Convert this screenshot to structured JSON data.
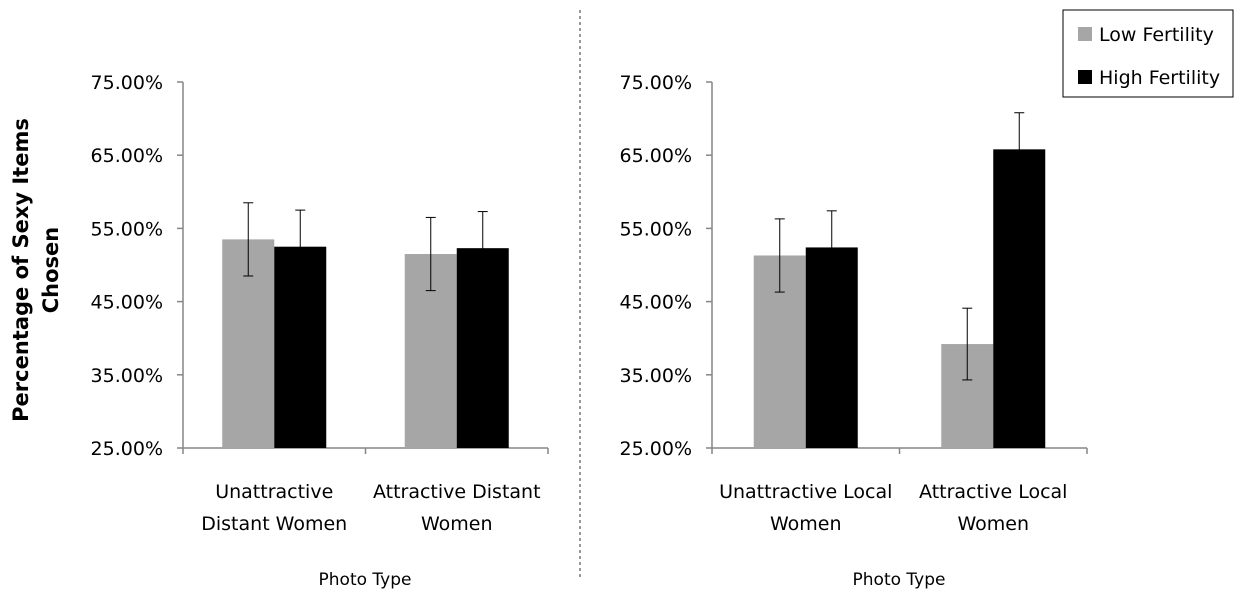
{
  "ylabel": "Percentage of Sexy Items Chosen",
  "colors": {
    "low": "#a6a6a6",
    "high": "#000000",
    "axis": "#868686",
    "divider": "#555555"
  },
  "legend": {
    "placement": "top-right",
    "items": [
      "Low Fertility",
      "High Fertility"
    ]
  },
  "chart_data": [
    {
      "type": "bar",
      "xlabel": "Photo Type",
      "ylabel": "Percentage of Sexy Items Chosen",
      "ylim": [
        25,
        75
      ],
      "yticks": [
        "25.00%",
        "35.00%",
        "45.00%",
        "55.00%",
        "65.00%",
        "75.00%"
      ],
      "categories": [
        [
          "Unattractive",
          "Distant Women"
        ],
        [
          "Attractive Distant",
          "Women"
        ]
      ],
      "series": [
        {
          "name": "Low Fertility",
          "values": [
            53.5,
            51.5
          ],
          "errors": [
            5.0,
            5.0
          ]
        },
        {
          "name": "High Fertility",
          "values": [
            52.5,
            52.3
          ],
          "errors": [
            5.0,
            5.0
          ]
        }
      ],
      "grid": false
    },
    {
      "type": "bar",
      "xlabel": "Photo Type",
      "ylabel": "",
      "ylim": [
        25,
        75
      ],
      "yticks": [
        "25.00%",
        "35.00%",
        "45.00%",
        "55.00%",
        "65.00%",
        "75.00%"
      ],
      "categories": [
        [
          "Unattractive Local",
          "Women"
        ],
        [
          "Attractive Local",
          "Women"
        ]
      ],
      "series": [
        {
          "name": "Low Fertility",
          "values": [
            51.3,
            39.2
          ],
          "errors": [
            5.0,
            4.9
          ]
        },
        {
          "name": "High Fertility",
          "values": [
            52.4,
            65.8
          ],
          "errors": [
            5.0,
            5.0
          ]
        }
      ],
      "grid": false
    }
  ]
}
